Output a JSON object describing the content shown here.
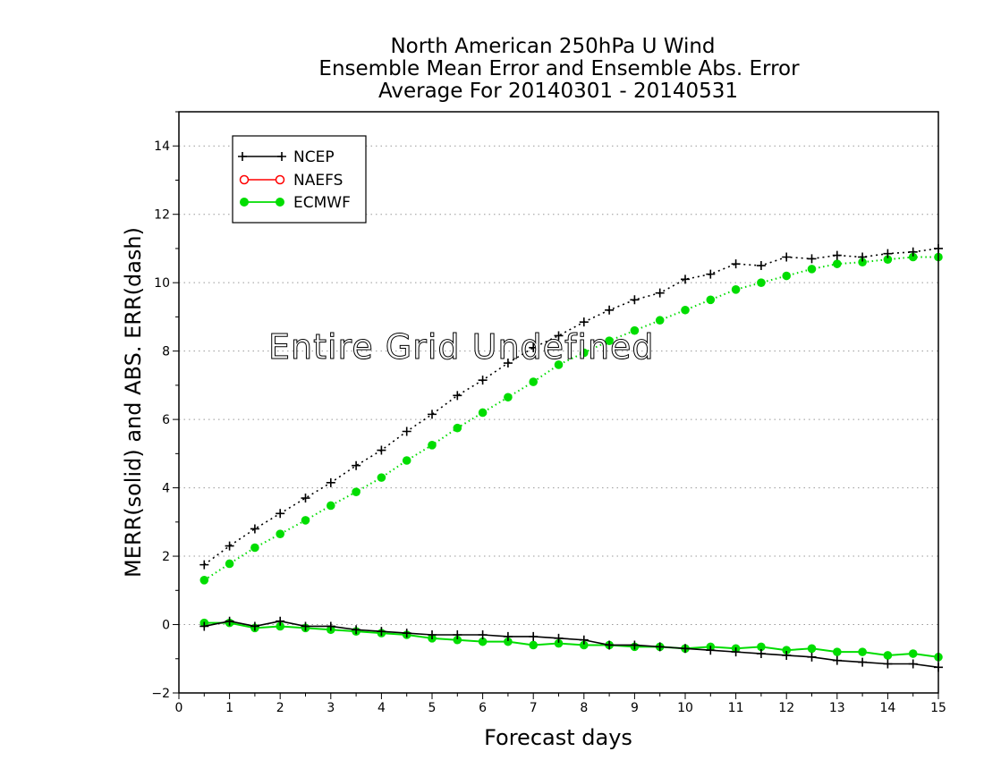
{
  "chart_data": {
    "type": "line",
    "title_lines": [
      "North American 250hPa U Wind",
      "Ensemble Mean Error and Ensemble Abs. Error",
      "Average For 20140301 - 20140531"
    ],
    "xlabel": "Forecast days",
    "ylabel": "MERR(solid) and ABS. ERR(dash)",
    "overlay_text": "Entire Grid Undefined",
    "xlim": [
      0,
      15
    ],
    "ylim": [
      -2,
      15
    ],
    "x_ticks": [
      "0",
      "1",
      "2",
      "3",
      "4",
      "5",
      "6",
      "7",
      "8",
      "9",
      "10",
      "11",
      "12",
      "13",
      "14",
      "15"
    ],
    "y_ticks": [
      "−2",
      "0",
      "2",
      "4",
      "6",
      "8",
      "10",
      "12",
      "14"
    ],
    "y_tick_values": [
      -2,
      0,
      2,
      4,
      6,
      8,
      10,
      12,
      14
    ],
    "grid": "horizontal dotted",
    "legend_position": "top-left",
    "x": [
      0.5,
      1,
      1.5,
      2,
      2.5,
      3,
      3.5,
      4,
      4.5,
      5,
      5.5,
      6,
      6.5,
      7,
      7.5,
      8,
      8.5,
      9,
      9.5,
      10,
      10.5,
      11,
      11.5,
      12,
      12.5,
      13,
      13.5,
      14,
      14.5,
      15
    ],
    "series": [
      {
        "name": "NCEP",
        "color": "#000000",
        "marker": "plus",
        "abs_err": [
          1.75,
          2.3,
          2.8,
          3.25,
          3.7,
          4.15,
          4.65,
          5.1,
          5.65,
          6.15,
          6.7,
          7.15,
          7.65,
          8.1,
          8.45,
          8.85,
          9.2,
          9.5,
          9.7,
          10.1,
          10.25,
          10.55,
          10.5,
          10.75,
          10.7,
          10.8,
          10.75,
          10.85,
          10.9,
          11.0
        ],
        "mean_err": [
          -0.05,
          0.1,
          -0.05,
          0.1,
          -0.05,
          -0.05,
          -0.15,
          -0.2,
          -0.25,
          -0.3,
          -0.3,
          -0.3,
          -0.35,
          -0.35,
          -0.4,
          -0.45,
          -0.6,
          -0.6,
          -0.65,
          -0.7,
          -0.75,
          -0.8,
          -0.85,
          -0.9,
          -0.95,
          -1.05,
          -1.1,
          -1.15,
          -1.15,
          -1.25
        ]
      },
      {
        "name": "NAEFS",
        "color": "#ff0000",
        "marker": "open-circle",
        "abs_err": [],
        "mean_err": []
      },
      {
        "name": "ECMWF",
        "color": "#00dd00",
        "marker": "filled-circle",
        "abs_err": [
          1.3,
          1.78,
          2.25,
          2.65,
          3.05,
          3.48,
          3.88,
          4.3,
          4.8,
          5.25,
          5.75,
          6.2,
          6.65,
          7.1,
          7.6,
          7.95,
          8.3,
          8.6,
          8.9,
          9.2,
          9.5,
          9.8,
          10.0,
          10.2,
          10.4,
          10.55,
          10.6,
          10.68,
          10.75,
          10.75
        ],
        "mean_err": [
          0.05,
          0.05,
          -0.1,
          -0.05,
          -0.1,
          -0.15,
          -0.2,
          -0.25,
          -0.3,
          -0.4,
          -0.45,
          -0.5,
          -0.5,
          -0.6,
          -0.55,
          -0.6,
          -0.6,
          -0.65,
          -0.65,
          -0.7,
          -0.65,
          -0.7,
          -0.65,
          -0.75,
          -0.7,
          -0.8,
          -0.8,
          -0.9,
          -0.85,
          -0.95
        ]
      }
    ]
  }
}
